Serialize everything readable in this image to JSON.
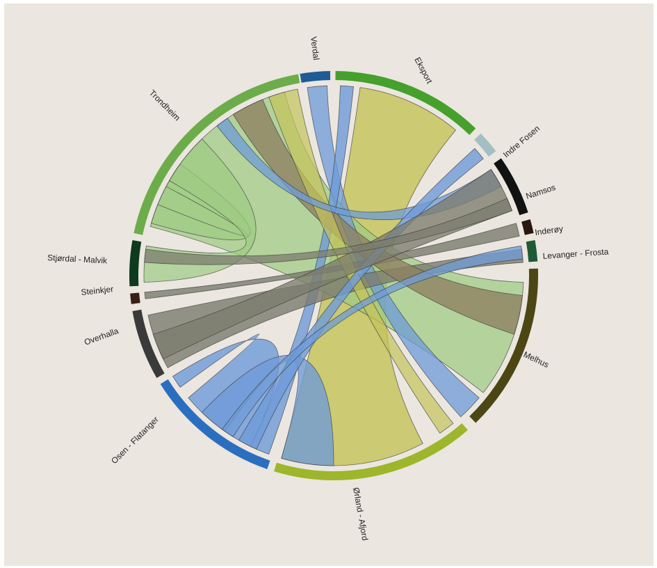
{
  "segments": [
    {
      "id": "verdal",
      "label": "Verdal",
      "color": "#1f5b94"
    },
    {
      "id": "eksport",
      "label": "Eksport",
      "color": "#46a02c"
    },
    {
      "id": "indre",
      "label": "Indre Fosen",
      "color": "#a4bfc3"
    },
    {
      "id": "namsos",
      "label": "Namsos",
      "color": "#121212"
    },
    {
      "id": "inderoy",
      "label": "Inderøy",
      "color": "#2a1610"
    },
    {
      "id": "levanger",
      "label": "Levanger - Frosta",
      "color": "#1d5a36"
    },
    {
      "id": "melhus",
      "label": "Melhus",
      "color": "#4c4614"
    },
    {
      "id": "orland",
      "label": "Ørland - Afjord",
      "color": "#9db62b"
    },
    {
      "id": "osen",
      "label": "Osen - Flatanger",
      "color": "#2a6fbf"
    },
    {
      "id": "overhalla",
      "label": "Overhalla",
      "color": "#3a3a3a"
    },
    {
      "id": "steinkjer",
      "label": "Steinkjer",
      "color": "#3a1f17"
    },
    {
      "id": "stjordal",
      "label": "Stjørdal - Malvik",
      "color": "#0e3a1f"
    },
    {
      "id": "trondheim",
      "label": "Trondheim",
      "color": "#6dac4a"
    }
  ],
  "colors": {
    "olive": "#c5c35a",
    "green": "#9dcb82",
    "blue": "#6e9bd8",
    "gray": "#7c7c6e",
    "taupe": "#8e8062"
  }
}
